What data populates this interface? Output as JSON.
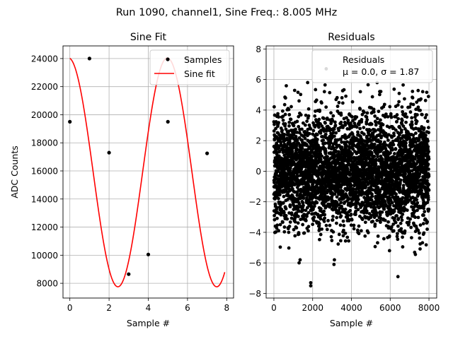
{
  "figure": {
    "suptitle": "Run 1090, channel1, Sine Freq.: 8.005 MHz"
  },
  "chart_data": [
    {
      "type": "line",
      "title": "Sine Fit",
      "xlabel": "Sample #",
      "ylabel": "ADC Counts",
      "xlim": [
        -0.35,
        8.35
      ],
      "ylim": [
        6950,
        24900
      ],
      "xticks": [
        0,
        2,
        4,
        6,
        8
      ],
      "yticks": [
        8000,
        10000,
        12000,
        14000,
        16000,
        18000,
        20000,
        22000,
        24000
      ],
      "grid": true,
      "legend": {
        "placement": "top-right",
        "entries": [
          "Samples",
          "Sine fit"
        ]
      },
      "series": [
        {
          "name": "Samples",
          "kind": "markers",
          "color": "#000000",
          "x": [
            0,
            1,
            2,
            3,
            4,
            5,
            6,
            7
          ],
          "y": [
            19500,
            24000,
            17300,
            8650,
            10050,
            19500,
            24000,
            17250
          ]
        },
        {
          "name": "Sine fit",
          "kind": "line",
          "color": "#ff0000",
          "model": {
            "offset": 15900,
            "amplitude": 8150,
            "samples_per_cycle": 5.04,
            "phase_deg": 95,
            "x_start": 0,
            "x_end": 7.9
          }
        }
      ]
    },
    {
      "type": "scatter",
      "title": "Residuals",
      "xlabel": "Sample #",
      "xlim": [
        -400,
        8400
      ],
      "ylim": [
        -8.3,
        8.2
      ],
      "xticks": [
        0,
        2000,
        4000,
        6000,
        8000
      ],
      "yticks": [
        -8,
        -6,
        -4,
        -2,
        0,
        2,
        4,
        6,
        8
      ],
      "grid": true,
      "legend": {
        "placement": "top-right",
        "entries": [
          "Residuals",
          "μ = 0.0, σ = 1.87"
        ]
      },
      "series": [
        {
          "name": "Residuals",
          "color": "#000000",
          "distribution": {
            "n": 8000,
            "mean": 0.0,
            "sigma": 1.87
          },
          "outliers": [
            [
              1900,
              -7.3
            ],
            [
              1900,
              -7.5
            ],
            [
              6400,
              -6.9
            ],
            [
              2700,
              6.7
            ],
            [
              3100,
              -6.1
            ],
            [
              1300,
              -6.0
            ]
          ]
        }
      ]
    }
  ]
}
